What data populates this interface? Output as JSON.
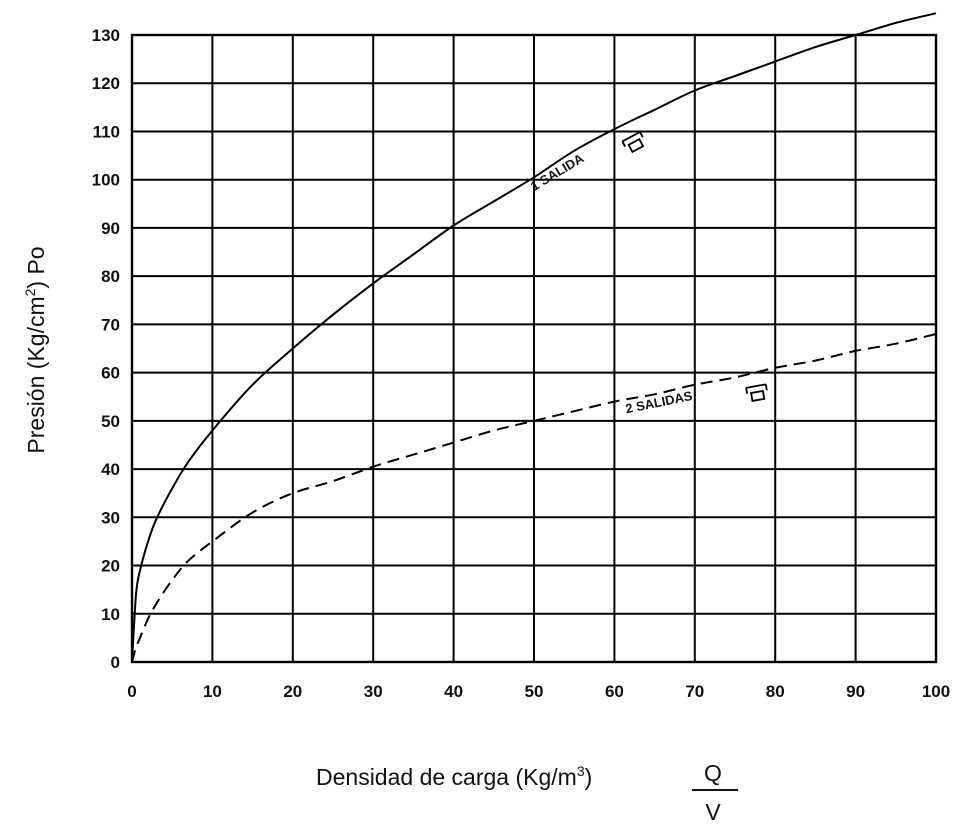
{
  "chart_data": {
    "type": "line",
    "title": "",
    "xlabel": "Densidad de carga (Kg/m",
    "xlabel_sup": "3",
    "xlabel_close": ")",
    "xlabel_fraction": {
      "numerator": "Q",
      "denominator": "V"
    },
    "ylabel": "Presión (Kg/cm",
    "ylabel_sup": "2",
    "ylabel_close": ") Po",
    "xlim": [
      0,
      100
    ],
    "ylim": [
      0,
      130
    ],
    "xticks": [
      "0",
      "10",
      "20",
      "30",
      "40",
      "50",
      "60",
      "70",
      "80",
      "90",
      "100"
    ],
    "yticks": [
      "0",
      "10",
      "20",
      "30",
      "40",
      "50",
      "60",
      "70",
      "80",
      "90",
      "100",
      "110",
      "120",
      "130"
    ],
    "grid": true,
    "series": [
      {
        "name": "1 SALIDA",
        "style": "solid",
        "x": [
          0,
          0.5,
          1,
          2,
          3,
          5,
          7,
          10,
          15,
          20,
          25,
          30,
          35,
          40,
          45,
          50,
          55,
          60,
          65,
          70,
          75,
          80,
          85,
          90,
          95,
          100
        ],
        "y": [
          0,
          14,
          19,
          25,
          29.5,
          36,
          41.5,
          48,
          57.5,
          65,
          72,
          78.5,
          84.5,
          90.5,
          95.5,
          100.5,
          106,
          110.5,
          114.5,
          118.5,
          121.5,
          124.5,
          127.5,
          130,
          132.5,
          134.5
        ]
      },
      {
        "name": "2 SALIDAS",
        "style": "dashed",
        "x": [
          0,
          0.5,
          1,
          2,
          3,
          5,
          7,
          10,
          15,
          20,
          25,
          30,
          35,
          40,
          45,
          50,
          55,
          60,
          65,
          70,
          75,
          80,
          85,
          90,
          95,
          100
        ],
        "y": [
          0,
          3,
          5,
          9,
          12,
          17,
          21,
          25,
          31,
          35,
          37.5,
          40.5,
          43,
          45.5,
          48,
          50,
          52,
          54,
          55.5,
          57.5,
          59,
          61,
          62.5,
          64.5,
          66,
          68
        ]
      }
    ]
  }
}
